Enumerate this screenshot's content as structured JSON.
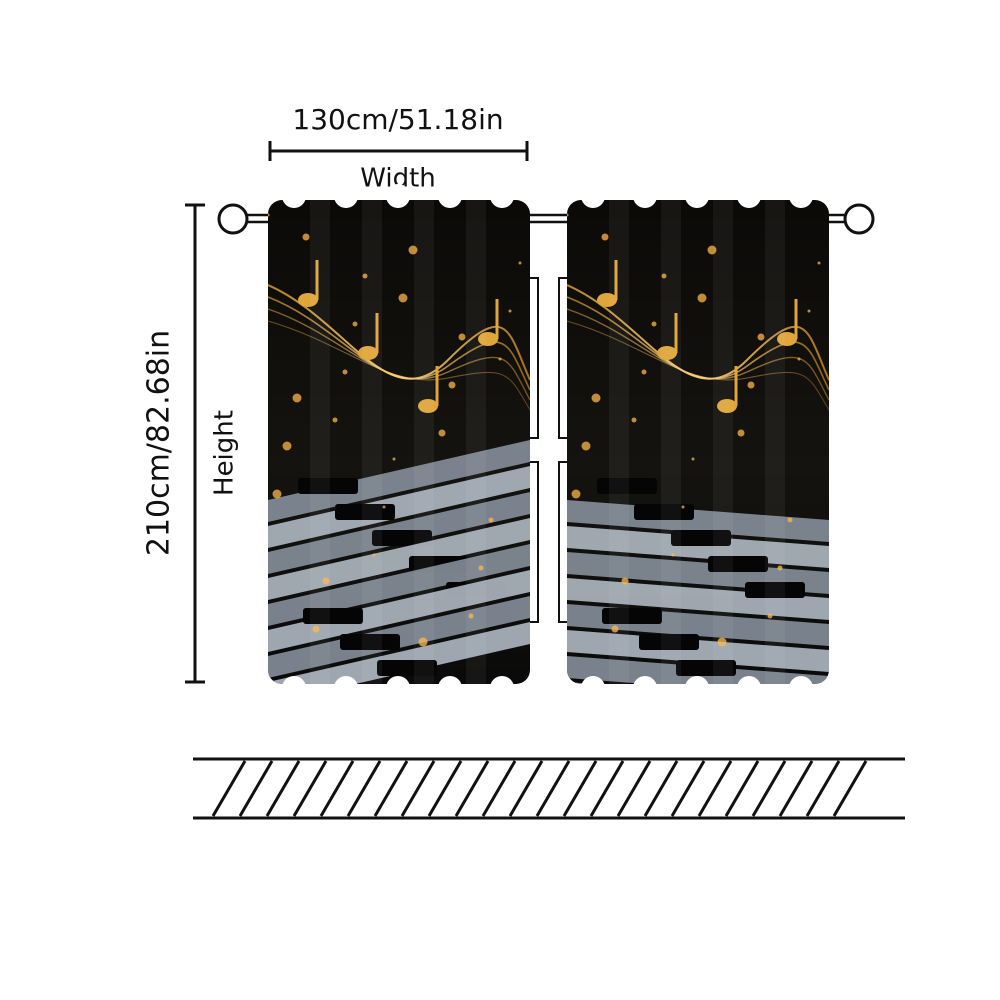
{
  "width": {
    "measure": "130cm/51.18in",
    "label": "Width"
  },
  "height": {
    "measure": "210cm/82.68in",
    "label": "Height"
  }
}
